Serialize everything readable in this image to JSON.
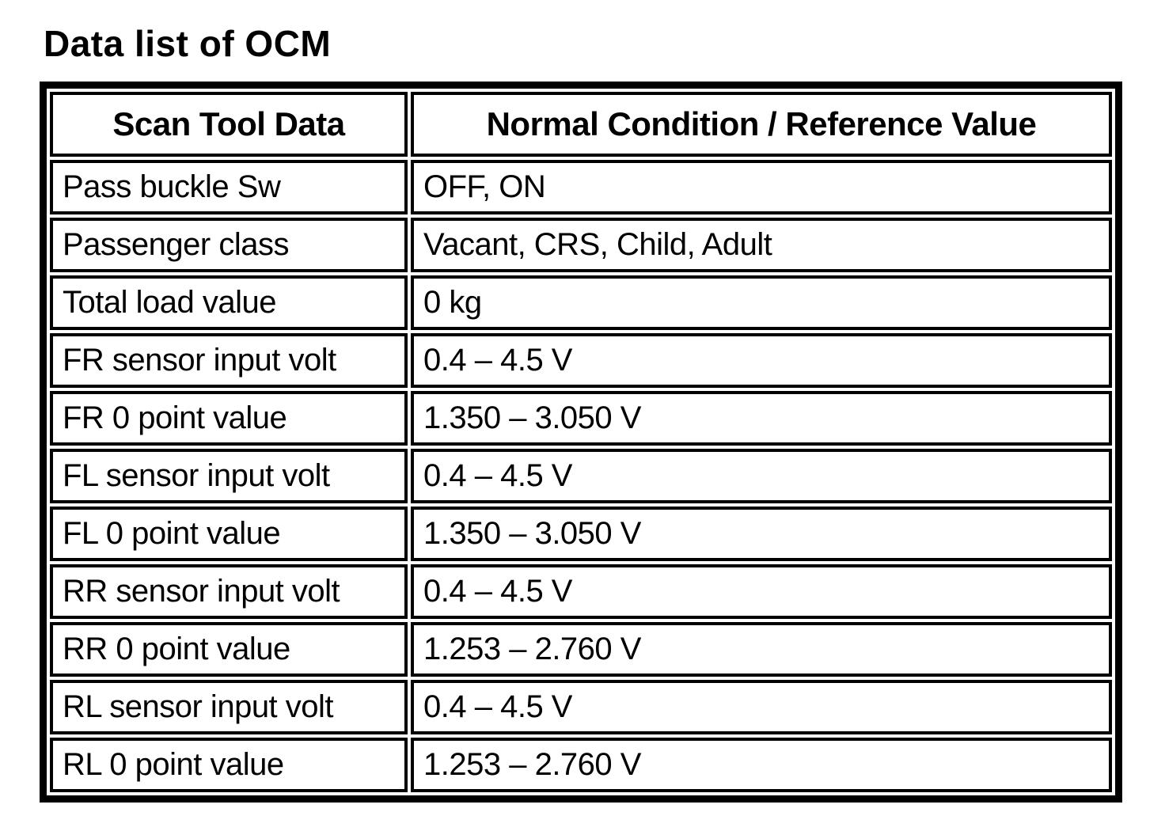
{
  "page": {
    "title": "Data list of OCM"
  },
  "colors": {
    "foreground": "#000000",
    "background": "#ffffff"
  },
  "table": {
    "headers": [
      "Scan Tool Data",
      "Normal Condition / Reference Value"
    ],
    "rows": [
      {
        "param": "Pass buckle Sw",
        "value": "OFF, ON"
      },
      {
        "param": "Passenger class",
        "value": "Vacant, CRS, Child, Adult"
      },
      {
        "param": "Total load value",
        "value": "0 kg"
      },
      {
        "param": "FR sensor input volt",
        "value": "0.4 – 4.5 V"
      },
      {
        "param": "FR 0 point value",
        "value": "1.350 – 3.050 V"
      },
      {
        "param": "FL sensor input volt",
        "value": "0.4 – 4.5 V"
      },
      {
        "param": "FL 0 point value",
        "value": "1.350 – 3.050 V"
      },
      {
        "param": "RR sensor input volt",
        "value": "0.4 – 4.5 V"
      },
      {
        "param": "RR 0 point value",
        "value": "1.253 – 2.760 V"
      },
      {
        "param": "RL sensor input volt",
        "value": "0.4 – 4.5 V"
      },
      {
        "param": "RL 0 point value",
        "value": "1.253 – 2.760 V"
      }
    ]
  }
}
